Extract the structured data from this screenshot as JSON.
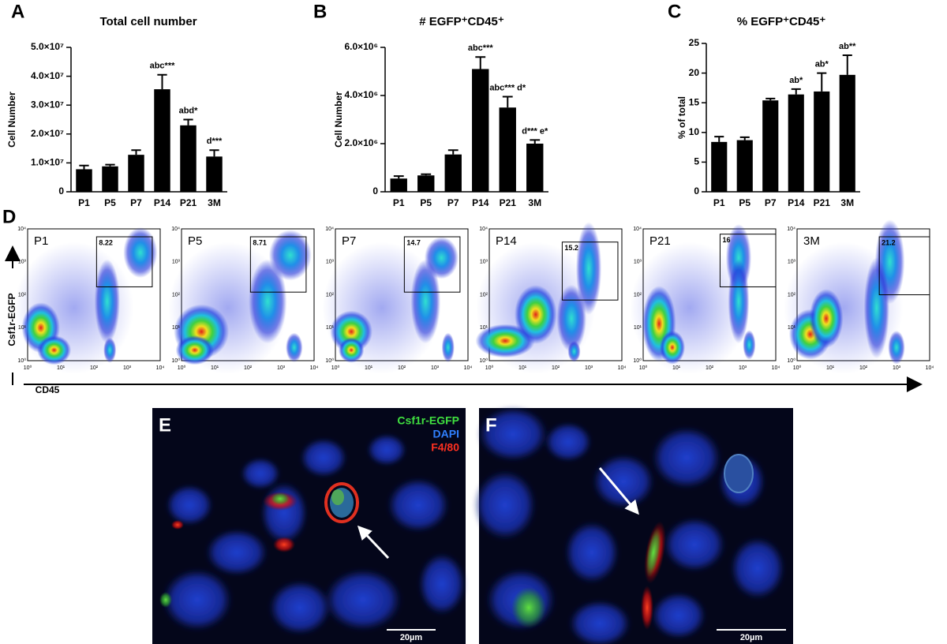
{
  "chart_data": [
    {
      "type": "bar",
      "panel": "A",
      "title": "Total cell number",
      "y_label": "Cell Number",
      "color": "#000000",
      "categories": [
        "P1",
        "P5",
        "P7",
        "P14",
        "P21",
        "3M"
      ],
      "values": [
        7800000,
        8800000,
        12800000,
        35500000,
        23000000,
        12200000
      ],
      "errors": [
        1300000,
        600000,
        1600000,
        5000000,
        2000000,
        2200000
      ],
      "annotations": [
        null,
        null,
        null,
        "abc***",
        "abd*",
        "d***"
      ],
      "ylim": [
        0,
        50000000
      ],
      "yticks": [
        0,
        {
          "value": 10000000,
          "label": "1.0×10⁷"
        },
        {
          "value": 20000000,
          "label": "2.0×10⁷"
        },
        {
          "value": 30000000,
          "label": "3.0×10⁷"
        },
        {
          "value": 40000000,
          "label": "4.0×10⁷"
        },
        {
          "value": 50000000,
          "label": "5.0×10⁷"
        }
      ]
    },
    {
      "type": "bar",
      "panel": "B",
      "title": "# EGFP⁺CD45⁺",
      "y_label": "Cell Number",
      "color": "#000000",
      "categories": [
        "P1",
        "P5",
        "P7",
        "P14",
        "P21",
        "3M"
      ],
      "values": [
        550000,
        680000,
        1550000,
        5100000,
        3500000,
        2000000
      ],
      "errors": [
        100000,
        50000,
        180000,
        500000,
        450000,
        150000
      ],
      "annotations": [
        null,
        null,
        null,
        "abc***",
        "abc*** d*",
        "d*** e*"
      ],
      "ylim": [
        0,
        6000000
      ],
      "yticks": [
        0,
        {
          "value": 2000000,
          "label": "2.0×10⁶"
        },
        {
          "value": 4000000,
          "label": "4.0×10⁶"
        },
        {
          "value": 6000000,
          "label": "6.0×10⁶"
        }
      ]
    },
    {
      "type": "bar",
      "panel": "C",
      "title": "% EGFP⁺CD45⁺",
      "y_label": "% of total",
      "color": "#000000",
      "categories": [
        "P1",
        "P5",
        "P7",
        "P14",
        "P21",
        "3M"
      ],
      "values": [
        8.4,
        8.7,
        15.4,
        16.4,
        16.9,
        19.7
      ],
      "errors": [
        0.9,
        0.5,
        0.3,
        0.9,
        3.1,
        3.3
      ],
      "annotations": [
        null,
        null,
        null,
        "ab*",
        "ab*",
        "ab**"
      ],
      "ylim": [
        0,
        25
      ],
      "yticks": [
        0,
        5,
        10,
        15,
        20,
        25
      ]
    }
  ],
  "flow": {
    "panel": "D",
    "y_label": "Csf1r-EGFP",
    "x_label": "CD45",
    "axis_ticks": [
      "10⁰",
      "10¹",
      "10²",
      "10³",
      "10⁴"
    ],
    "plots": [
      {
        "label": "P1",
        "gate": 8.22
      },
      {
        "label": "P5",
        "gate": 8.71
      },
      {
        "label": "P7",
        "gate": 14.7
      },
      {
        "label": "P14",
        "gate": 15.2
      },
      {
        "label": "P21",
        "gate": 16
      },
      {
        "label": "3M",
        "gate": 21.2
      }
    ]
  },
  "images": [
    {
      "panel": "E",
      "legend": [
        "Csf1r-EGFP",
        "DAPI",
        "F4/80"
      ],
      "scale_bar": "20µm"
    },
    {
      "panel": "F",
      "scale_bar": "20µm"
    }
  ]
}
